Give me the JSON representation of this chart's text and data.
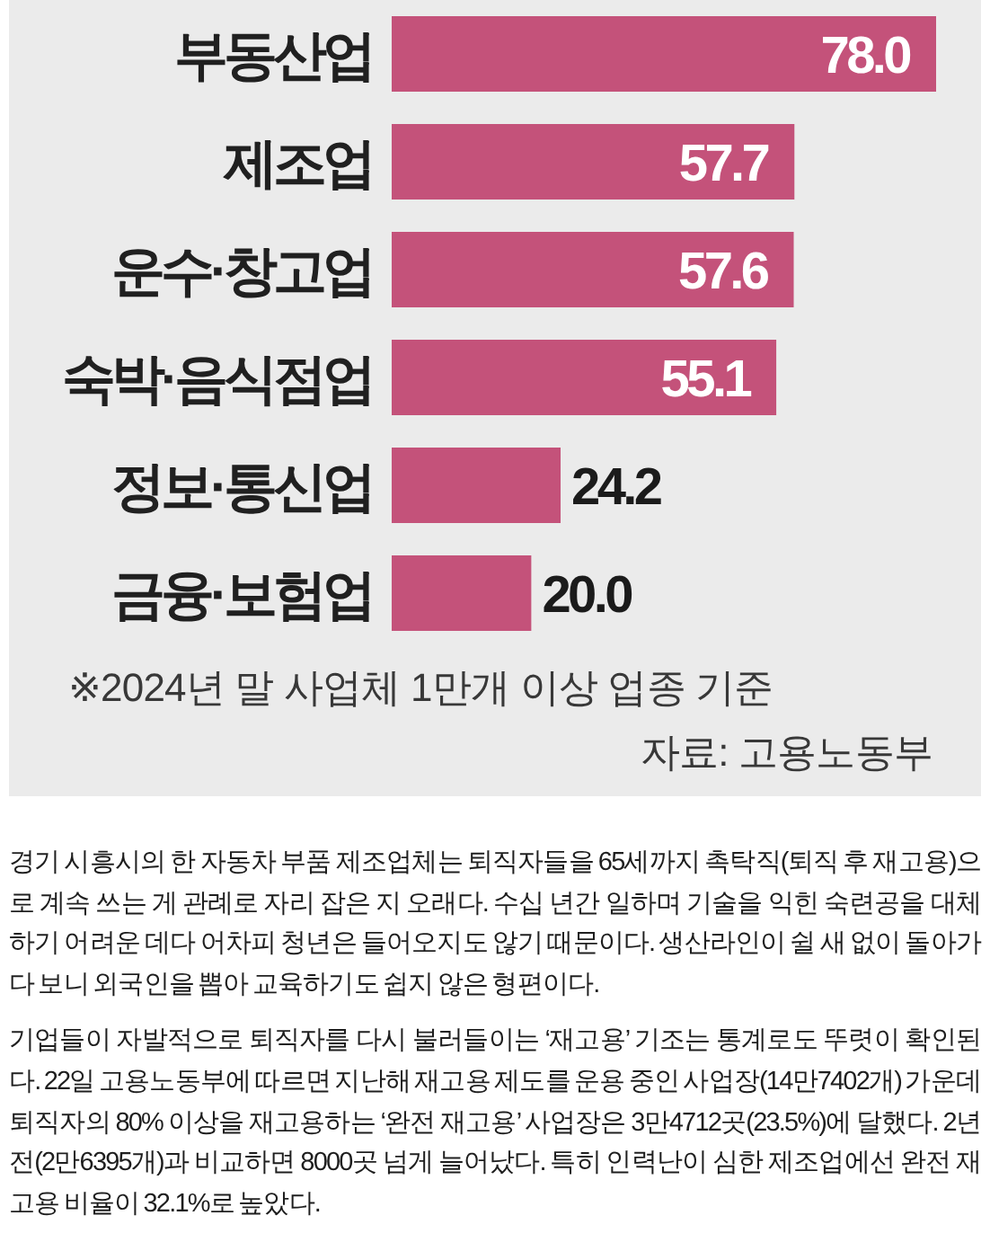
{
  "chart_data": {
    "type": "bar",
    "orientation": "horizontal",
    "categories": [
      "부동산업",
      "제조업",
      "운수·창고업",
      "숙박·음식점업",
      "정보·통신업",
      "금융·보험업"
    ],
    "values": [
      78.0,
      57.7,
      57.6,
      55.1,
      24.2,
      20.0
    ],
    "value_labels": [
      "78.0",
      "57.7",
      "57.6",
      "55.1",
      "24.2",
      "20.0"
    ],
    "color": "#c4527a",
    "annotations": [
      "※2024년 말 사업체 1만개 이상 업종 기준",
      "자료: 고용노동부",
      "경기 시흥시의 한 자동차 부품 제조업체는 퇴직자들을 65세까지 촉탁직(퇴직 후 재고용)으로 계속 쓰는 게 관례로 자리 잡은 지 오래다. 수십 년간 일하며 기술을 익힌 숙련공을 대체하기 어려운 데다 어차피 청년은 들어오지도 않기 때문이다. 생산라인이 쉴 새 없이 돌아가다 보니 외국인을 뽑아 교육하기도 쉽지 않은 형편이다.",
      "기업들이 자발적으로 퇴직자를 다시 불러들이는 ‘재고용’ 기조는 통계로도 뚜렷이 확인된다. 22일 고용노동부에 따르면 지난해 재고용 제도를 운용 중인 사업장(14만7402개) 가운데 퇴직자의 80% 이상을 재고용하는 ‘완전 재고용’ 사업장은 3만4712곳(23.5%)에 달했다. 2년 전(2만6395개)과 비교하면 8000곳 넘게 늘어났다. 특히 인력난이 심한 제조업에선 완전 재고용 비율이 32.1%로 높았다."
    ]
  }
}
